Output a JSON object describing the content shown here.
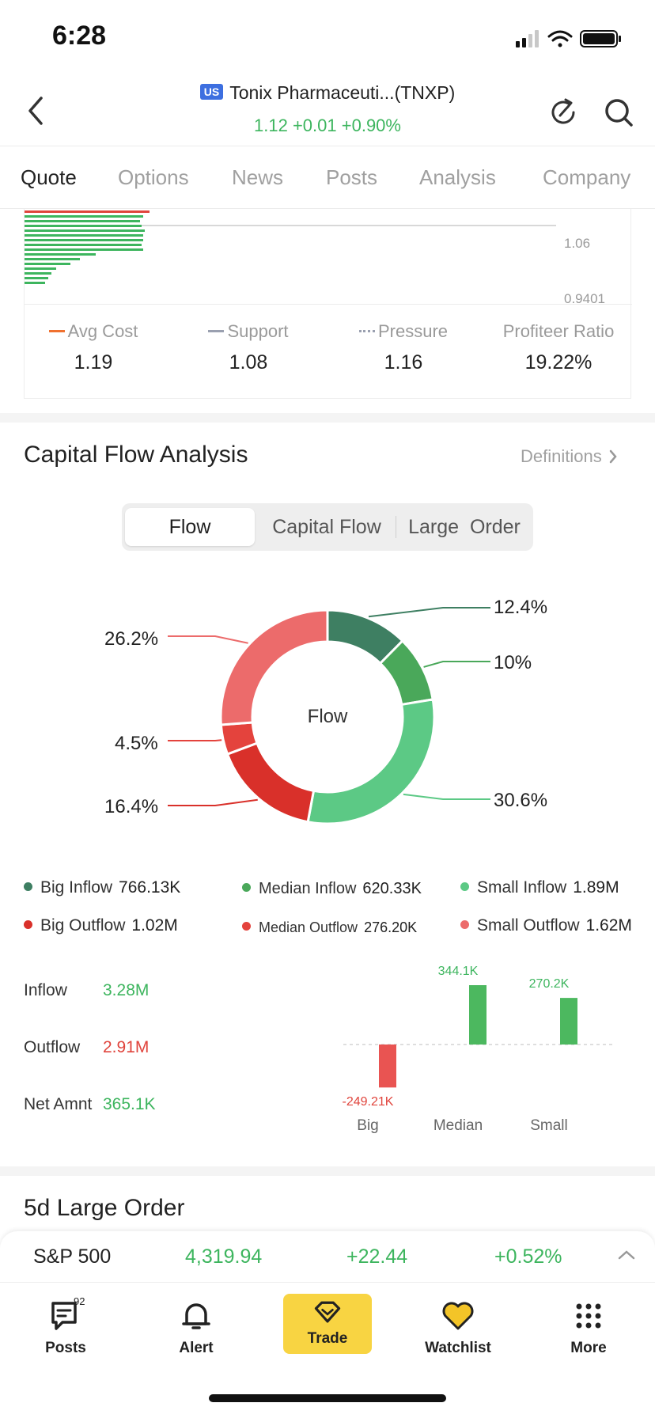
{
  "status_bar": {
    "time": "6:28"
  },
  "header": {
    "market_flag": "US",
    "title": "Tonix Pharmaceuti...(TNXP)",
    "price": "1.12",
    "change": "+0.01",
    "change_pct": "+0.90%"
  },
  "tabs": [
    "Quote",
    "Options",
    "News",
    "Posts",
    "Analysis",
    "Company"
  ],
  "distribution": {
    "price_ticks": [
      "1.06",
      "0.9401"
    ],
    "stats": [
      {
        "label": "Avg Cost",
        "value": "1.19"
      },
      {
        "label": "Support",
        "value": "1.08"
      },
      {
        "label": "Pressure",
        "value": "1.16"
      },
      {
        "label": "Profiteer Ratio",
        "value": "19.22%"
      }
    ]
  },
  "capital_flow": {
    "title": "Capital Flow Analysis",
    "definitions_label": "Definitions",
    "segments": [
      "Flow",
      "Capital Flow",
      "Large  Order"
    ],
    "donut_center": "Flow",
    "legend": [
      {
        "label": "Big Inflow",
        "value": "766.13K",
        "color": "#3e7f62"
      },
      {
        "label": "Median Inflow",
        "value": "620.33K",
        "color": "#4aa85a"
      },
      {
        "label": "Small Inflow",
        "value": "1.89M",
        "color": "#5cc985"
      },
      {
        "label": "Big Outflow",
        "value": "1.02M",
        "color": "#d9302a"
      },
      {
        "label": "Median Outflow",
        "value": "276.20K",
        "color": "#e4433d"
      },
      {
        "label": "Small Outflow",
        "value": "1.62M",
        "color": "#ec6b6b"
      }
    ],
    "summary": {
      "inflow_label": "Inflow",
      "inflow": "3.28M",
      "outflow_label": "Outflow",
      "outflow": "2.91M",
      "net_label": "Net Amnt",
      "net": "365.1K"
    },
    "net_chart": {
      "categories": [
        "Big",
        "Median",
        "Small"
      ],
      "value_labels": [
        "-249.21K",
        "344.1K",
        "270.2K"
      ]
    }
  },
  "chart_data": {
    "type": "pie",
    "labels": [
      "Big Inflow",
      "Median Inflow",
      "Small Inflow",
      "Big Outflow",
      "Median Outflow",
      "Small Outflow"
    ],
    "values": [
      12.4,
      10,
      30.6,
      16.4,
      4.5,
      26.2
    ],
    "value_labels": [
      "12.4%",
      "10%",
      "30.6%",
      "16.4%",
      "4.5%",
      "26.2%"
    ],
    "colors": [
      "#3e7f62",
      "#4aa85a",
      "#5cc985",
      "#d9302a",
      "#e4433d",
      "#ec6b6b"
    ]
  },
  "net_chart_data": {
    "type": "bar",
    "categories": [
      "Big",
      "Median",
      "Small"
    ],
    "values": [
      -249.21,
      344.1,
      270.2
    ]
  },
  "large_order": {
    "title": "5d Large Order"
  },
  "index_ticker": {
    "name": "S&P 500",
    "value": "4,319.94",
    "change": "+22.44",
    "change_pct": "+0.52%"
  },
  "bottom_nav": {
    "posts_badge": "92",
    "items": [
      "Posts",
      "Alert",
      "Trade",
      "Watchlist",
      "More"
    ]
  }
}
